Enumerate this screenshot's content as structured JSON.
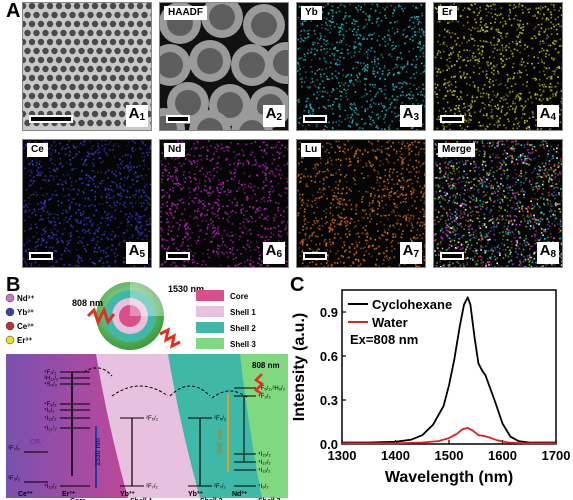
{
  "panel_a": {
    "label": "A",
    "tiles": [
      {
        "name": "",
        "sub": "A",
        "idx": "1",
        "color": "#888888"
      },
      {
        "name": "HAADF",
        "sub": "A",
        "idx": "2",
        "color": "#bbbbbb"
      },
      {
        "name": "Yb",
        "sub": "A",
        "idx": "3",
        "color": "#22b8c8"
      },
      {
        "name": "Er",
        "sub": "A",
        "idx": "4",
        "color": "#c8c820"
      },
      {
        "name": "Ce",
        "sub": "A",
        "idx": "5",
        "color": "#3a3ad8"
      },
      {
        "name": "Nd",
        "sub": "A",
        "idx": "6",
        "color": "#c020c8"
      },
      {
        "name": "Lu",
        "sub": "A",
        "idx": "7",
        "color": "#e07020"
      },
      {
        "name": "Merge",
        "sub": "A",
        "idx": "8",
        "color": "#multi"
      }
    ]
  },
  "panel_b": {
    "label": "B",
    "ions": [
      "Nd³⁺",
      "Yb³⁺",
      "Ce³⁺",
      "Er³⁺"
    ],
    "ion_colors": [
      "#d070d0",
      "#4040b0",
      "#c03030",
      "#e8e020"
    ],
    "laser_in": "808 nm",
    "laser_out": "1530 nm",
    "legend": [
      {
        "name": "Core",
        "color": "#d8508a"
      },
      {
        "name": "Shell 1",
        "color": "#e8c0e0"
      },
      {
        "name": "Shell 2",
        "color": "#40b8a8"
      },
      {
        "name": "Shell 3",
        "color": "#80d880"
      }
    ],
    "diagram": {
      "er_levels": [
        "⁴F₇/₂",
        "²H₁₁/₂",
        "⁴S₃/₂",
        "⁴F₉/₂",
        "⁴I₉/₂",
        "⁴I₁₁/₂",
        "⁴I₁₃/₂",
        "⁴I₁₅/₂"
      ],
      "ce_levels": [
        "²F₇/₂",
        "²F₅/₂"
      ],
      "yb_levels": [
        "²F₅/₂",
        "²F₇/₂"
      ],
      "nd_levels": [
        "⁴F₅/₂,²H₉/₂",
        "⁴F₃/₂",
        "⁴I₁₅/₂",
        "⁴I₁₃/₂",
        "⁴I₁₁/₂",
        "⁴I₉/₂"
      ],
      "cr_label": "CR",
      "emission_label": "1530 nm",
      "transfer_label": "980 nm",
      "pump_label": "808 nm",
      "ion_labels": [
        "Ce³⁺",
        "Er³⁺",
        "Yb³⁺",
        "Yb³⁺",
        "Nd³⁺"
      ],
      "region_labels": [
        "Core",
        "Shell 1",
        "Shell 2",
        "Shell 3"
      ]
    }
  },
  "panel_c": {
    "label": "C",
    "chart_data": {
      "type": "line",
      "xlabel": "Wavelength (nm)",
      "ylabel": "Intensity (a.u.)",
      "xlim": [
        1300,
        1700
      ],
      "ylim": [
        0,
        1.05
      ],
      "xticks": [
        1300,
        1400,
        1500,
        1600,
        1700
      ],
      "yticks": [
        0.0,
        0.3,
        0.6,
        0.9
      ],
      "annotation": "Ex=808 nm",
      "legend_position": "top-right",
      "series": [
        {
          "name": "Cyclohexane",
          "color": "#000000",
          "x": [
            1300,
            1350,
            1400,
            1430,
            1450,
            1470,
            1490,
            1500,
            1510,
            1520,
            1528,
            1535,
            1540,
            1548,
            1555,
            1562,
            1568,
            1575,
            1585,
            1600,
            1615,
            1630,
            1650,
            1700
          ],
          "y": [
            0.01,
            0.01,
            0.015,
            0.03,
            0.06,
            0.13,
            0.26,
            0.4,
            0.58,
            0.8,
            0.95,
            1.0,
            0.95,
            0.72,
            0.55,
            0.5,
            0.47,
            0.4,
            0.3,
            0.14,
            0.05,
            0.02,
            0.01,
            0.01
          ]
        },
        {
          "name": "Water",
          "color": "#e02020",
          "x": [
            1300,
            1400,
            1450,
            1480,
            1500,
            1515,
            1525,
            1535,
            1545,
            1555,
            1565,
            1575,
            1590,
            1610,
            1640,
            1700
          ],
          "y": [
            0.005,
            0.005,
            0.01,
            0.02,
            0.04,
            0.07,
            0.1,
            0.11,
            0.09,
            0.06,
            0.055,
            0.045,
            0.025,
            0.01,
            0.005,
            0.005
          ]
        }
      ]
    }
  }
}
